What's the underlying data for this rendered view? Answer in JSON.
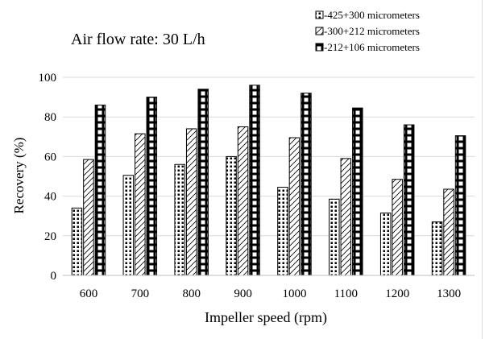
{
  "chart_data": {
    "type": "bar",
    "title": "Air flow rate: 30 L/h",
    "xlabel": "Impeller speed (rpm)",
    "ylabel": "Recovery (%)",
    "ylim": [
      0,
      100
    ],
    "yticks": [
      "0",
      "20",
      "40",
      "60",
      "80",
      "100"
    ],
    "grid": "horizontal",
    "legend_position": "top-right",
    "categories": [
      "600",
      "700",
      "800",
      "900",
      "1000",
      "1100",
      "1200",
      "1300"
    ],
    "series": [
      {
        "name": "-425+300 micrometers",
        "pattern": "dots",
        "values": [
          34,
          50.5,
          56,
          60,
          44.5,
          38.5,
          31.5,
          27
        ]
      },
      {
        "name": "-300+212 micrometers",
        "pattern": "diagonal",
        "values": [
          58.5,
          71.5,
          74,
          75,
          69.5,
          59,
          48.5,
          43.5
        ]
      },
      {
        "name": "-212+106 micrometers",
        "pattern": "grid",
        "values": [
          86,
          90,
          94,
          96,
          92,
          84.5,
          76,
          70.5
        ]
      }
    ]
  }
}
